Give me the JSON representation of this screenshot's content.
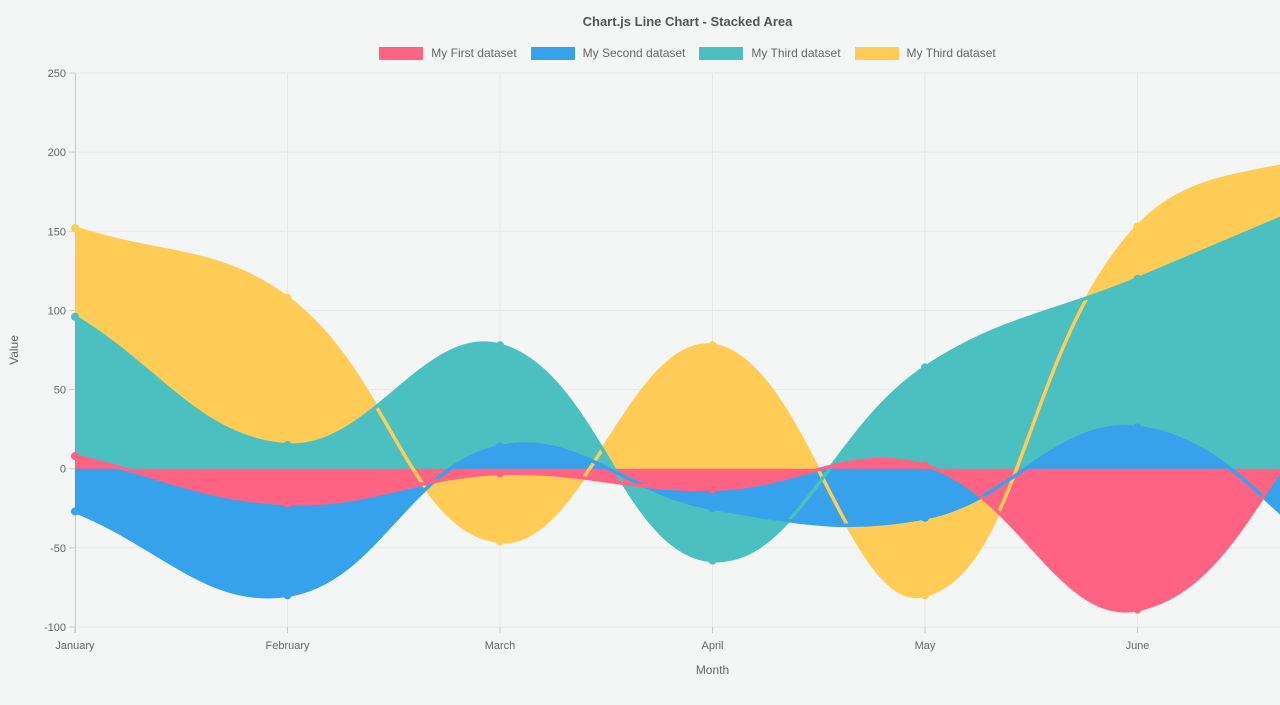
{
  "chart": {
    "title": "Chart.js Line Chart - Stacked Area",
    "x_axis_label": "Month",
    "y_axis_label": "Value"
  },
  "chart_data": {
    "type": "area",
    "stacked": true,
    "title": "Chart.js Line Chart - Stacked Area",
    "xlabel": "Month",
    "ylabel": "Value",
    "categories": [
      "January",
      "February",
      "March",
      "April",
      "May",
      "June"
    ],
    "y_ticks": [
      250,
      200,
      150,
      100,
      50,
      0,
      -50,
      -100
    ],
    "ylim": [
      -100,
      250
    ],
    "grid": true,
    "legend_position": "top",
    "series": [
      {
        "name": "My First dataset",
        "color": "#FF6384",
        "plotted_values": [
          8,
          -22,
          -3,
          -13,
          2,
          -89
        ],
        "value_at_right_crop": 20
      },
      {
        "name": "My Second dataset",
        "color": "#36A2EB",
        "plotted_values": [
          -27,
          -80,
          14,
          -25,
          -31,
          26
        ],
        "value_at_right_crop": -40
      },
      {
        "name": "My Third dataset",
        "color": "#4BC0C0",
        "plotted_values": [
          96,
          15,
          78,
          -58,
          64,
          120
        ],
        "value_at_right_crop": 162
      },
      {
        "name": "My Third dataset",
        "color": "#FFCD56",
        "plotted_values": [
          152,
          108,
          -46,
          78,
          -80,
          153
        ],
        "value_at_right_crop": 190
      }
    ],
    "note": "plotted_values are the cumulative stacked line positions read off the y-axis at each month; curves continue smoothly past June and are cropped at the right window edge at value_at_right_crop"
  },
  "style": {
    "background": "#F4F5F5",
    "grid_color": "#E7E8E9",
    "axis_color": "#C9CBCD",
    "text_color": "#666666",
    "title_color": "#555555",
    "point_radius": 4,
    "line_width": 3.5
  }
}
